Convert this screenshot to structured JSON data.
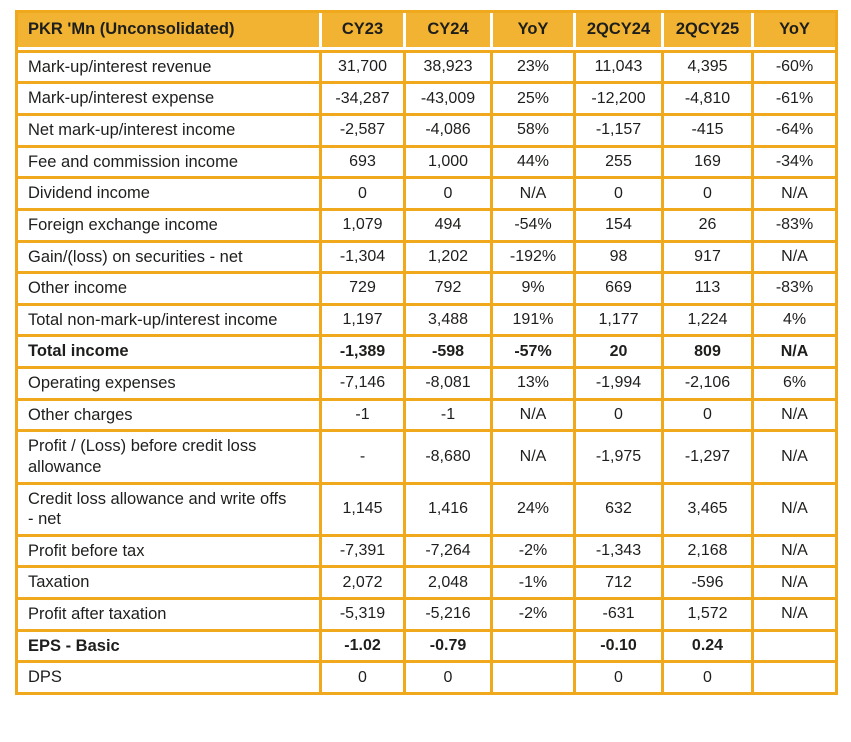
{
  "colors": {
    "header_bg": "#F1B331",
    "border": "#F0A81C",
    "text": "#1E1E1C",
    "page_bg": "#FFFFFF"
  },
  "table": {
    "title_cell": "PKR 'Mn (Unconsolidated)",
    "columns": [
      "CY23",
      "CY24",
      "YoY",
      "2QCY24",
      "2QCY25",
      "YoY"
    ],
    "rows": [
      {
        "label": "Mark-up/interest revenue",
        "bold": false,
        "values": [
          "31,700",
          "38,923",
          "23%",
          "11,043",
          "4,395",
          "-60%"
        ]
      },
      {
        "label": "Mark-up/interest expense",
        "bold": false,
        "values": [
          "-34,287",
          "-43,009",
          "25%",
          "-12,200",
          "-4,810",
          "-61%"
        ]
      },
      {
        "label": "Net mark-up/interest income",
        "bold": false,
        "values": [
          "-2,587",
          "-4,086",
          "58%",
          "-1,157",
          "-415",
          "-64%"
        ]
      },
      {
        "label": "Fee and commission income",
        "bold": false,
        "values": [
          "693",
          "1,000",
          "44%",
          "255",
          "169",
          "-34%"
        ]
      },
      {
        "label": "Dividend income",
        "bold": false,
        "values": [
          "0",
          "0",
          "N/A",
          "0",
          "0",
          "N/A"
        ]
      },
      {
        "label": "Foreign exchange income",
        "bold": false,
        "values": [
          "1,079",
          "494",
          "-54%",
          "154",
          "26",
          "-83%"
        ]
      },
      {
        "label": "Gain/(loss) on securities - net",
        "bold": false,
        "values": [
          "-1,304",
          "1,202",
          "-192%",
          "98",
          "917",
          "N/A"
        ]
      },
      {
        "label": "Other income",
        "bold": false,
        "values": [
          "729",
          "792",
          "9%",
          "669",
          "113",
          "-83%"
        ]
      },
      {
        "label": "Total non-mark-up/interest income",
        "bold": false,
        "values": [
          "1,197",
          "3,488",
          "191%",
          "1,177",
          "1,224",
          "4%"
        ]
      },
      {
        "label": "Total income",
        "bold": true,
        "values": [
          "-1,389",
          "-598",
          "-57%",
          "20",
          "809",
          "N/A"
        ]
      },
      {
        "label": "Operating expenses",
        "bold": false,
        "values": [
          "-7,146",
          "-8,081",
          "13%",
          "-1,994",
          "-2,106",
          "6%"
        ]
      },
      {
        "label": "Other charges",
        "bold": false,
        "values": [
          "-1",
          "-1",
          "N/A",
          "0",
          "0",
          "N/A"
        ]
      },
      {
        "label": "Profit / (Loss) before credit loss allowance",
        "bold": false,
        "values": [
          "-",
          "-8,680",
          "N/A",
          "-1,975",
          "-1,297",
          "N/A"
        ]
      },
      {
        "label": "Credit loss allowance and write offs - net",
        "bold": false,
        "values": [
          "1,145",
          "1,416",
          "24%",
          "632",
          "3,465",
          "N/A"
        ]
      },
      {
        "label": "Profit before tax",
        "bold": false,
        "values": [
          "-7,391",
          "-7,264",
          "-2%",
          "-1,343",
          "2,168",
          "N/A"
        ]
      },
      {
        "label": "Taxation",
        "bold": false,
        "values": [
          "2,072",
          "2,048",
          "-1%",
          "712",
          "-596",
          "N/A"
        ]
      },
      {
        "label": "Profit after taxation",
        "bold": false,
        "values": [
          "-5,319",
          "-5,216",
          "-2%",
          "-631",
          "1,572",
          "N/A"
        ]
      },
      {
        "label": "EPS - Basic",
        "bold": true,
        "values": [
          "-1.02",
          "-0.79",
          "",
          "-0.10",
          "0.24",
          ""
        ]
      },
      {
        "label": "DPS",
        "bold": false,
        "values": [
          "0",
          "0",
          "",
          "0",
          "0",
          ""
        ]
      }
    ]
  }
}
